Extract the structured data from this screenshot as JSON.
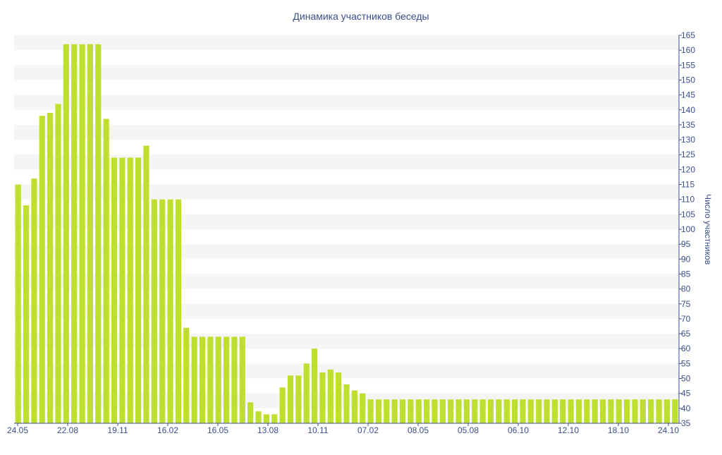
{
  "chart_data": {
    "type": "bar",
    "title": "Динамика участников беседы",
    "ylabel": "Число участников",
    "xlabel": "",
    "ylim": [
      35,
      165
    ],
    "y_axis_side": "right",
    "y_ticks": [
      35,
      40,
      45,
      50,
      55,
      60,
      65,
      70,
      75,
      80,
      85,
      90,
      95,
      100,
      105,
      110,
      115,
      120,
      125,
      130,
      135,
      140,
      145,
      150,
      155,
      160,
      165
    ],
    "x_tick_labels": [
      "24.05",
      "22.08",
      "19.11",
      "16.02",
      "16.05",
      "13.08",
      "10.11",
      "07.02",
      "08.05",
      "05.08",
      "06.10",
      "12.10",
      "18.10",
      "24.10"
    ],
    "grid": "horizontal-bands",
    "values": [
      115,
      108,
      117,
      138,
      139,
      142,
      162,
      162,
      162,
      162,
      162,
      137,
      124,
      124,
      124,
      124,
      128,
      110,
      110,
      110,
      110,
      67,
      64,
      64,
      64,
      64,
      64,
      64,
      64,
      42,
      39,
      38,
      38,
      47,
      51,
      51,
      55,
      60,
      52,
      53,
      52,
      48,
      46,
      45,
      43,
      43,
      43,
      43,
      43,
      43,
      43,
      43,
      43,
      43,
      43,
      43,
      43,
      43,
      43,
      43,
      43,
      43,
      43,
      43,
      43,
      43,
      43,
      43,
      43,
      43,
      43,
      43,
      43,
      43,
      43,
      43,
      43,
      43,
      43,
      43,
      43,
      43,
      43
    ],
    "colors": {
      "bar": "#bfdf2f",
      "text": "#3a4e8c",
      "band": "#f5f5f5",
      "axis": "#3a4e8c"
    }
  }
}
